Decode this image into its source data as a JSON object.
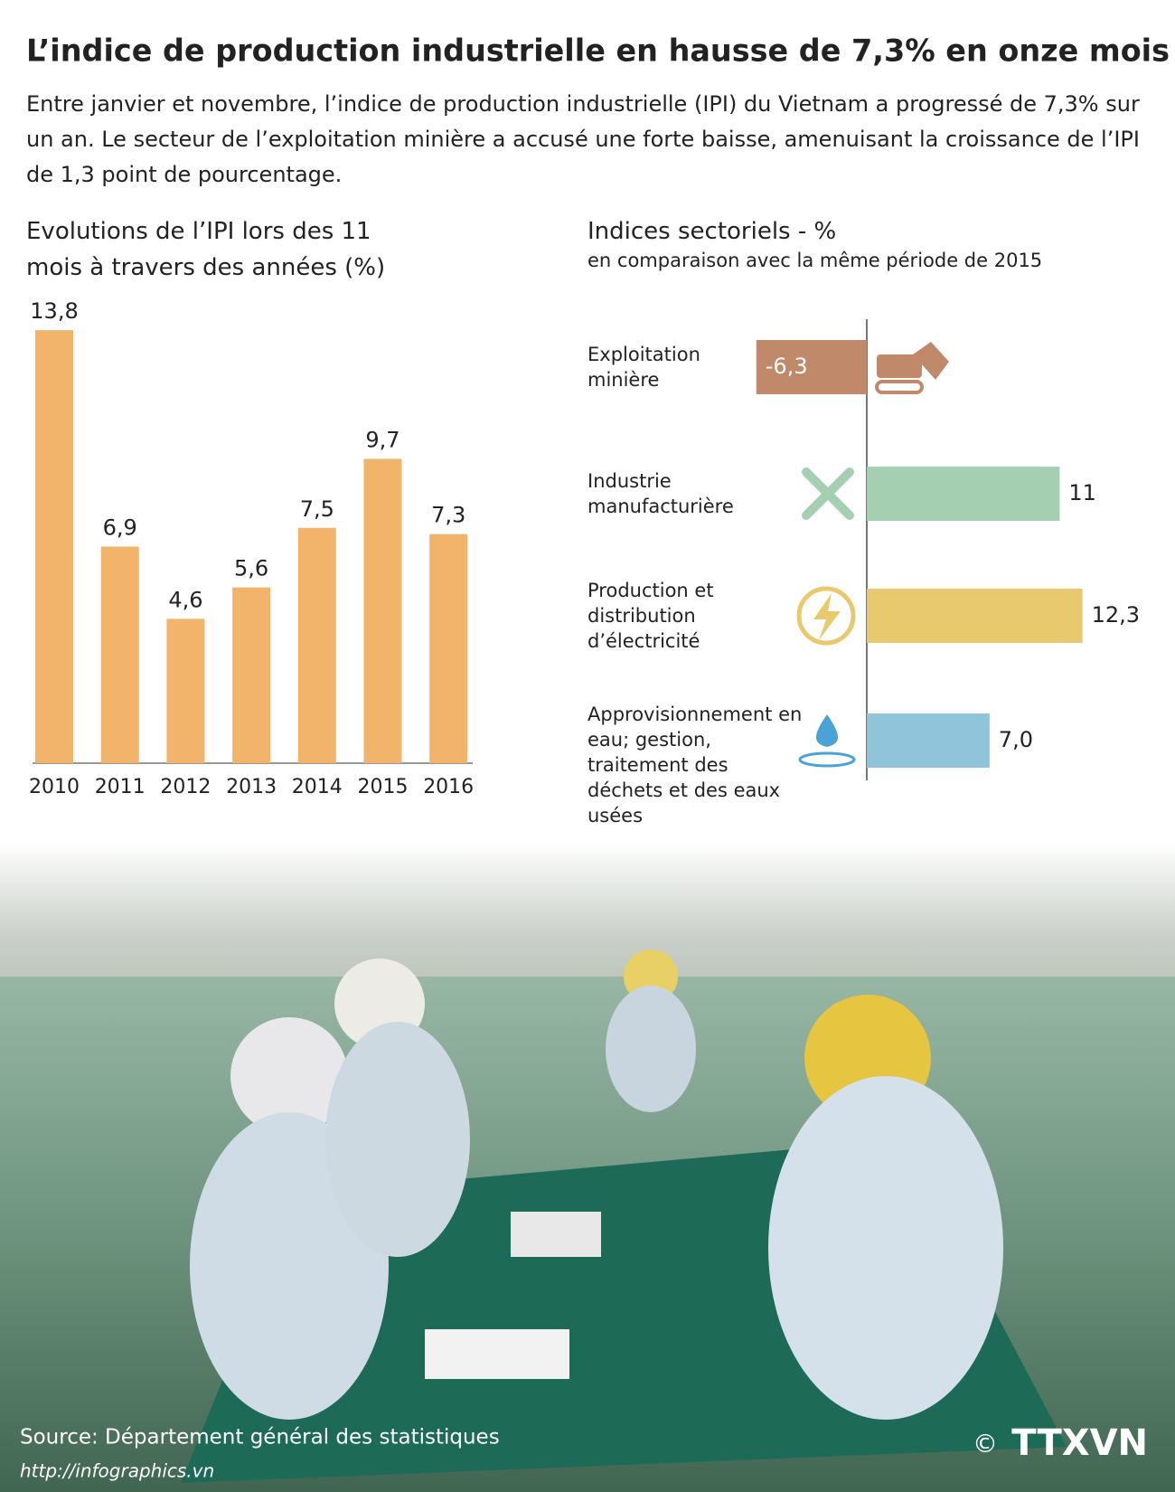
{
  "title": "L’indice de production industrielle en hausse de 7,3% en onze mois",
  "intro": "Entre janvier et novembre, l’indice de production industrielle (IPI) du Vietnam a progressé de 7,3% sur un an. Le secteur de l’exploitation minière a accusé une forte baisse, amenuisant la croissance de l’IPI de 1,3 point de pourcentage.",
  "chart_data": [
    {
      "type": "bar",
      "title": "Evolutions de l’IPI lors des 11 mois à travers des années (%)",
      "categories": [
        "2010",
        "2011",
        "2012",
        "2013",
        "2014",
        "2015",
        "2016"
      ],
      "values": [
        13.8,
        6.9,
        4.6,
        5.6,
        7.5,
        9.7,
        7.3
      ],
      "value_labels": [
        "13,8",
        "6,9",
        "4,6",
        "5,6",
        "7,5",
        "9,7",
        "7,3"
      ],
      "color": "#f2b46b"
    },
    {
      "type": "hbar",
      "title": "Indices sectoriels - %",
      "subtitle": "en comparaison avec la même période de 2015",
      "categories": [
        "Exploitation minière",
        "Industrie manufacturière",
        "Production et distribution d’électricité",
        "Approvisionnement en eau; gestion, traitement des déchets et des eaux usées"
      ],
      "values": [
        -6.3,
        11,
        12.3,
        7.0
      ],
      "value_labels": [
        "-6,3",
        "11",
        "12,3",
        "7,0"
      ],
      "colors": [
        "#c0896a",
        "#a5cfb1",
        "#e8c96e",
        "#8fc4da"
      ]
    }
  ],
  "source": "Source: Département général des statistiques",
  "url": "http://infographics.vn",
  "copyright": "©",
  "logo": "TTXVN"
}
